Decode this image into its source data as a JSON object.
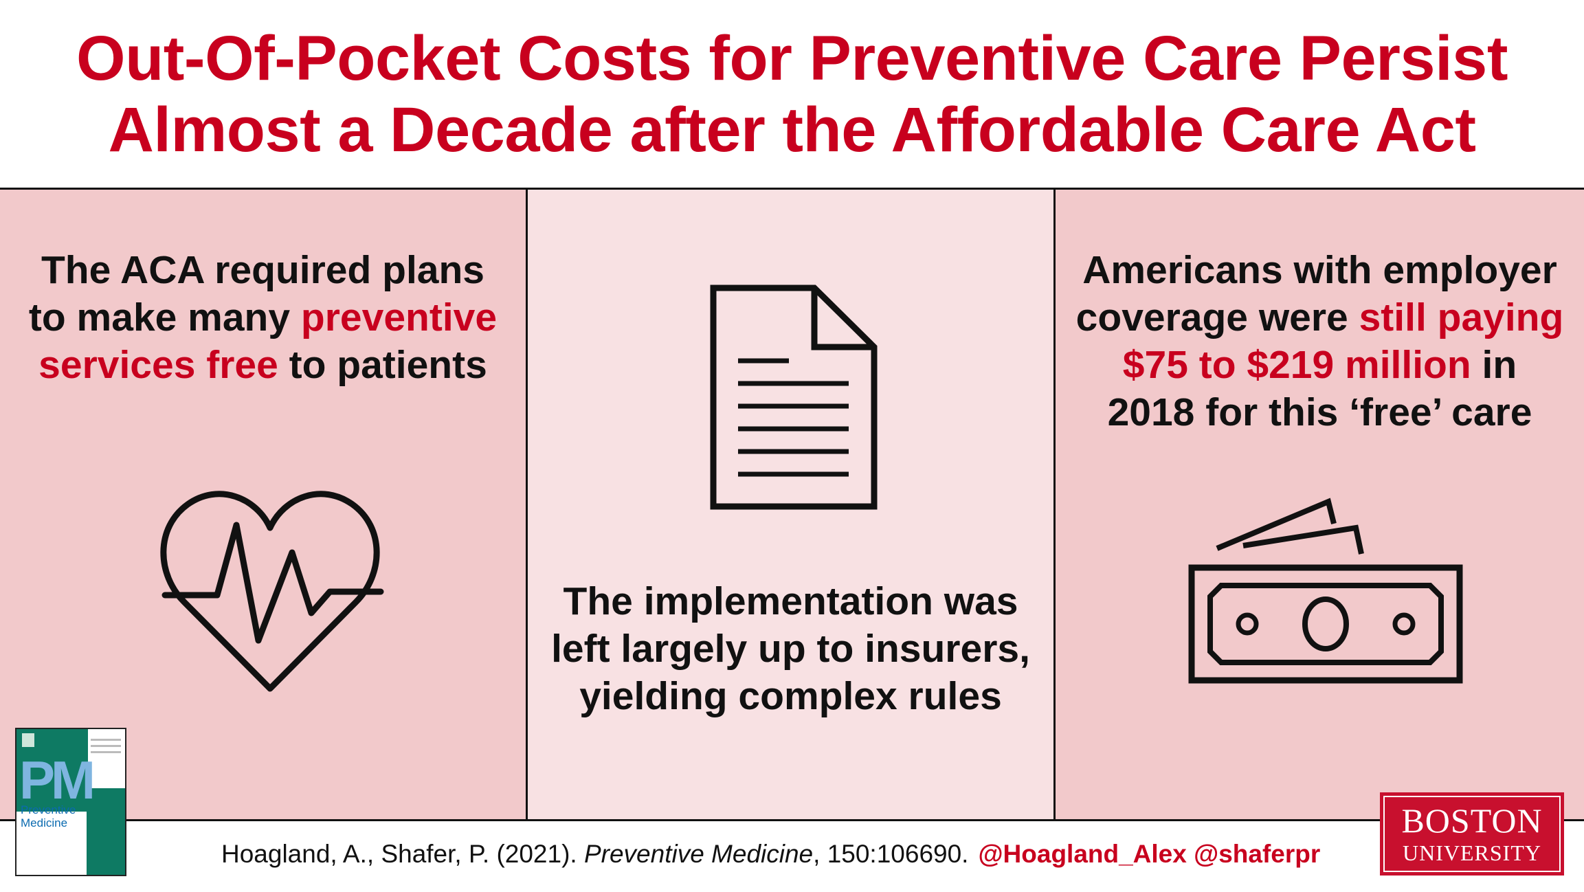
{
  "title": {
    "line1": "Out-Of-Pocket Costs for Preventive Care Persist",
    "line2": "Almost a Decade after the Affordable Care Act"
  },
  "panel1": {
    "text_a": "The ACA required plans",
    "text_b": "to make many ",
    "text_c": "preventive",
    "text_d": "services free",
    "text_e": " to patients",
    "icon": "heart-pulse-icon"
  },
  "panel2": {
    "line1": "The implementation was",
    "line2": "left largely up to insurers,",
    "line3": "yielding complex rules",
    "icon": "document-icon"
  },
  "panel3": {
    "text_a": "Americans with employer",
    "text_b": "coverage were ",
    "text_c": "still paying",
    "text_d": "$75 to $219 million",
    "text_e": " in",
    "text_f": "2018 for this ‘free’ care",
    "icon": "money-bills-icon"
  },
  "footer": {
    "cite_authors": "Hoagland, A., Shafer, P. (2021). ",
    "cite_journal": "Preventive Medicine",
    "cite_rest": ", 150:106690.",
    "handles": "@Hoagland_Alex @shaferpr"
  },
  "cover": {
    "abbr": "PM",
    "line1": "Preventive",
    "line2": "Medicine"
  },
  "logo": {
    "line1": "BOSTON",
    "line2": "UNIVERSITY"
  },
  "colors": {
    "accent": "#c8001e",
    "panel_dark": "#f2c9cb",
    "panel_light": "#f8e1e3",
    "journal_green": "#0e7a63",
    "bu_red": "#c8102e"
  }
}
